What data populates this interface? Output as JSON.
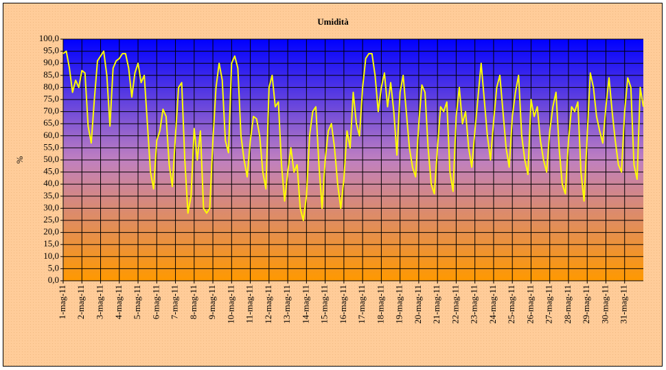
{
  "chart_data": {
    "type": "line",
    "title": "Umidità",
    "y_label": "%",
    "x": [
      0,
      4,
      8,
      12,
      16,
      20,
      24,
      28,
      32,
      36,
      40,
      44,
      48,
      52,
      56,
      60,
      64,
      68,
      72,
      76,
      80,
      84,
      88,
      92,
      96,
      100,
      104,
      108,
      112,
      116,
      120,
      124,
      128,
      132,
      136,
      140,
      144,
      148,
      152,
      156,
      160,
      164,
      168,
      172,
      176,
      180,
      184,
      188,
      192,
      196,
      200,
      204,
      208,
      212,
      216,
      220,
      224,
      228,
      232,
      236,
      240,
      244,
      248,
      252,
      256,
      260,
      264,
      268,
      272,
      276,
      280,
      284,
      288,
      292,
      296,
      300,
      304,
      308,
      312,
      316,
      320,
      324,
      328,
      332,
      336,
      340,
      344,
      348,
      352,
      356,
      360,
      364,
      368,
      372,
      376,
      380,
      384,
      388,
      392,
      396,
      400,
      404,
      408,
      412,
      416,
      420,
      424,
      428,
      432,
      436,
      440,
      444,
      448,
      452,
      456,
      460,
      464,
      468,
      472,
      476,
      480,
      484,
      488,
      492,
      496,
      500,
      504,
      508,
      512,
      516,
      520,
      524,
      528,
      532,
      536,
      540,
      544,
      548,
      552,
      556,
      560,
      564,
      568,
      572,
      576,
      580,
      584,
      588,
      592,
      596,
      600,
      604,
      608,
      612,
      616,
      620,
      624,
      628,
      632,
      636,
      640,
      644,
      648,
      652,
      656,
      660,
      664,
      668,
      672,
      676,
      680,
      684,
      688,
      692,
      696,
      700,
      704,
      708,
      712,
      716,
      720,
      724,
      728,
      732,
      736,
      740,
      744
    ],
    "series": [
      {
        "name": "Umidità",
        "color": "#ffff00",
        "values": [
          94,
          95,
          88,
          78,
          83,
          80,
          87,
          86,
          64,
          57,
          75,
          91,
          93,
          95,
          85,
          64,
          88,
          91,
          92,
          94,
          94,
          88,
          76,
          86,
          90,
          82,
          85,
          65,
          45,
          38,
          58,
          62,
          71,
          68,
          48,
          39,
          60,
          80,
          82,
          50,
          28,
          35,
          63,
          50,
          62,
          30,
          28,
          30,
          58,
          80,
          90,
          83,
          58,
          53,
          90,
          93,
          88,
          60,
          50,
          43,
          58,
          68,
          67,
          60,
          45,
          38,
          80,
          85,
          72,
          74,
          48,
          33,
          45,
          55,
          45,
          48,
          30,
          25,
          35,
          60,
          70,
          72,
          48,
          30,
          50,
          62,
          65,
          55,
          40,
          30,
          42,
          62,
          55,
          78,
          65,
          60,
          80,
          92,
          94,
          94,
          85,
          70,
          80,
          86,
          72,
          82,
          70,
          52,
          78,
          85,
          70,
          55,
          47,
          43,
          65,
          81,
          78,
          55,
          40,
          36,
          55,
          72,
          70,
          74,
          45,
          37,
          68,
          80,
          65,
          70,
          55,
          47,
          62,
          76,
          90,
          75,
          60,
          50,
          66,
          80,
          85,
          70,
          55,
          47,
          68,
          78,
          85,
          60,
          50,
          44,
          75,
          68,
          72,
          58,
          50,
          45,
          62,
          72,
          78,
          55,
          40,
          36,
          58,
          72,
          70,
          74,
          45,
          33,
          60,
          86,
          80,
          68,
          62,
          57,
          72,
          84,
          70,
          58,
          48,
          45,
          70,
          84,
          80,
          48,
          42,
          80,
          72
        ]
      }
    ],
    "xlim": [
      0,
      744
    ],
    "xticks": [
      {
        "value": 0,
        "label": "1-mag-11"
      },
      {
        "value": 24,
        "label": "2-mag-11"
      },
      {
        "value": 48,
        "label": "3-mag-11"
      },
      {
        "value": 72,
        "label": "4-mag-11"
      },
      {
        "value": 96,
        "label": "5-mag-11"
      },
      {
        "value": 120,
        "label": "6-mag-11"
      },
      {
        "value": 144,
        "label": "7-mag-11"
      },
      {
        "value": 168,
        "label": "8-mag-11"
      },
      {
        "value": 192,
        "label": "9-mag-11"
      },
      {
        "value": 216,
        "label": "10-mag-11"
      },
      {
        "value": 240,
        "label": "11-mag-11"
      },
      {
        "value": 264,
        "label": "12-mag-11"
      },
      {
        "value": 288,
        "label": "13-mag-11"
      },
      {
        "value": 312,
        "label": "14-mag-11"
      },
      {
        "value": 336,
        "label": "15-mag-11"
      },
      {
        "value": 360,
        "label": "16-mag-11"
      },
      {
        "value": 384,
        "label": "17-mag-11"
      },
      {
        "value": 408,
        "label": "18-mag-11"
      },
      {
        "value": 432,
        "label": "19-mag-11"
      },
      {
        "value": 456,
        "label": "20-mag-11"
      },
      {
        "value": 480,
        "label": "21-mag-11"
      },
      {
        "value": 504,
        "label": "22-mag-11"
      },
      {
        "value": 528,
        "label": "23-mag-11"
      },
      {
        "value": 552,
        "label": "24-mag-11"
      },
      {
        "value": 576,
        "label": "25-mag-11"
      },
      {
        "value": 600,
        "label": "26-mag-11"
      },
      {
        "value": 624,
        "label": "27-mag-11"
      },
      {
        "value": 648,
        "label": "28-mag-11"
      },
      {
        "value": 672,
        "label": "29-mag-11"
      },
      {
        "value": 696,
        "label": "30-mag-11"
      },
      {
        "value": 720,
        "label": "31-mag-11"
      }
    ],
    "ylim": [
      0,
      100
    ],
    "yticks": [
      {
        "value": 0,
        "label": "0,0"
      },
      {
        "value": 5,
        "label": "5,0"
      },
      {
        "value": 10,
        "label": "10,0"
      },
      {
        "value": 15,
        "label": "15,0"
      },
      {
        "value": 20,
        "label": "20,0"
      },
      {
        "value": 25,
        "label": "25,0"
      },
      {
        "value": 30,
        "label": "30,0"
      },
      {
        "value": 35,
        "label": "35,0"
      },
      {
        "value": 40,
        "label": "40,0"
      },
      {
        "value": 45,
        "label": "45,0"
      },
      {
        "value": 50,
        "label": "50,0"
      },
      {
        "value": 55,
        "label": "55,0"
      },
      {
        "value": 60,
        "label": "60,0"
      },
      {
        "value": 65,
        "label": "65,0"
      },
      {
        "value": 70,
        "label": "70,0"
      },
      {
        "value": 75,
        "label": "75,0"
      },
      {
        "value": 80,
        "label": "80,0"
      },
      {
        "value": 85,
        "label": "85,0"
      },
      {
        "value": 90,
        "label": "90,0"
      },
      {
        "value": 95,
        "label": "95,0"
      },
      {
        "value": 100,
        "label": "100,0"
      }
    ],
    "grid": true
  }
}
